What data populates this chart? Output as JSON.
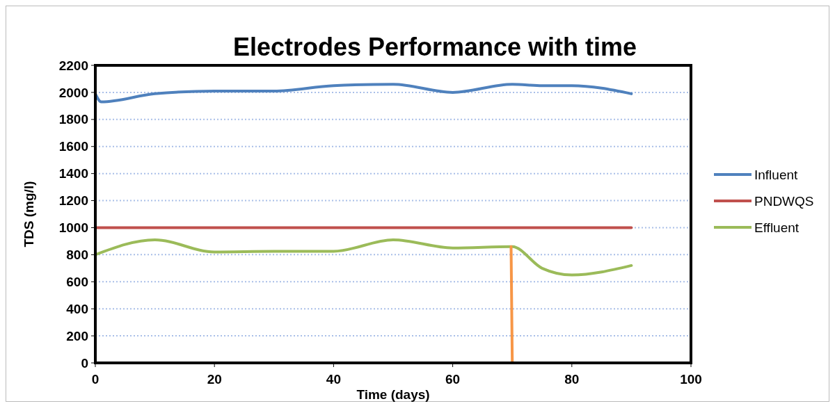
{
  "chart_data": {
    "type": "line",
    "title": "Electrodes Performance with time",
    "xlabel": "Time (days)",
    "ylabel": "TDS (mg/l)",
    "xlim": [
      0,
      100
    ],
    "xticks": [
      0,
      20,
      40,
      60,
      80,
      100
    ],
    "ylim": [
      0,
      2200
    ],
    "yticks": [
      0,
      200,
      400,
      600,
      800,
      1000,
      1200,
      1400,
      1600,
      1800,
      2000,
      2200
    ],
    "grid": "y",
    "legend": "right",
    "line_style": "solid",
    "marker": "none",
    "series": [
      {
        "name": "Influent",
        "color": "#4f81bd",
        "x": [
          0,
          1,
          10,
          20,
          30,
          40,
          50,
          60,
          70,
          75,
          80,
          90
        ],
        "values": [
          1990,
          1930,
          1990,
          2010,
          2010,
          2050,
          2060,
          2000,
          2060,
          2050,
          2050,
          1990
        ]
      },
      {
        "name": "PNDWQS",
        "color": "#c0504d",
        "x": [
          0,
          90
        ],
        "values": [
          1000,
          1000
        ]
      },
      {
        "name": "Effluent",
        "color": "#9bbb59",
        "x": [
          0,
          10,
          20,
          30,
          40,
          50,
          60,
          70,
          75,
          80,
          90
        ],
        "values": [
          800,
          910,
          820,
          825,
          825,
          910,
          850,
          860,
          700,
          650,
          720
        ]
      },
      {
        "color": "#f79646",
        "x": [
          69.8,
          70
        ],
        "values": [
          860,
          0
        ]
      }
    ]
  }
}
